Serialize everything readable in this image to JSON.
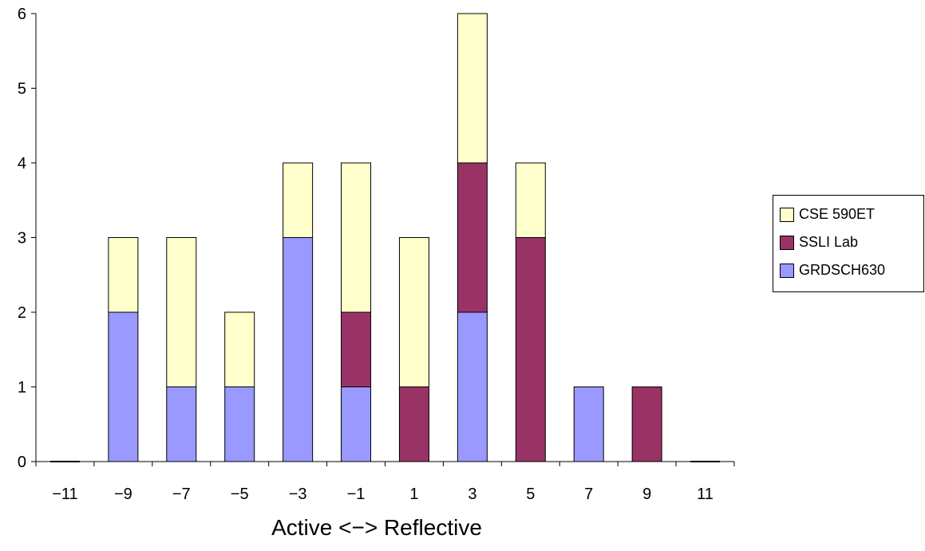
{
  "chart_data": {
    "type": "bar",
    "stacked": true,
    "categories": [
      "−11",
      "−9",
      "−7",
      "−5",
      "−3",
      "−1",
      "1",
      "3",
      "5",
      "7",
      "9",
      "11"
    ],
    "series": [
      {
        "name": "GRDSCH630",
        "color": "#9999ff",
        "values": [
          0,
          2,
          1,
          1,
          3,
          1,
          0,
          2,
          0,
          1,
          0,
          0
        ]
      },
      {
        "name": "SSLI Lab",
        "color": "#993366",
        "values": [
          0,
          0,
          0,
          0,
          0,
          1,
          1,
          2,
          3,
          0,
          1,
          0
        ]
      },
      {
        "name": "CSE 590ET",
        "color": "#ffffcc",
        "values": [
          0,
          1,
          2,
          1,
          1,
          2,
          2,
          2,
          1,
          0,
          0,
          0
        ]
      }
    ],
    "xlabel": "Active <−> Reflective",
    "ylabel": "",
    "ylim": [
      0,
      6
    ],
    "yticks": [
      "0",
      "1",
      "2",
      "3",
      "4",
      "5",
      "6"
    ],
    "legend_position": "right",
    "grid": false
  },
  "legend": {
    "items": [
      {
        "label": "CSE 590ET",
        "color": "#ffffcc"
      },
      {
        "label": "SSLI Lab",
        "color": "#993366"
      },
      {
        "label": "GRDSCH630",
        "color": "#9999ff"
      }
    ]
  }
}
